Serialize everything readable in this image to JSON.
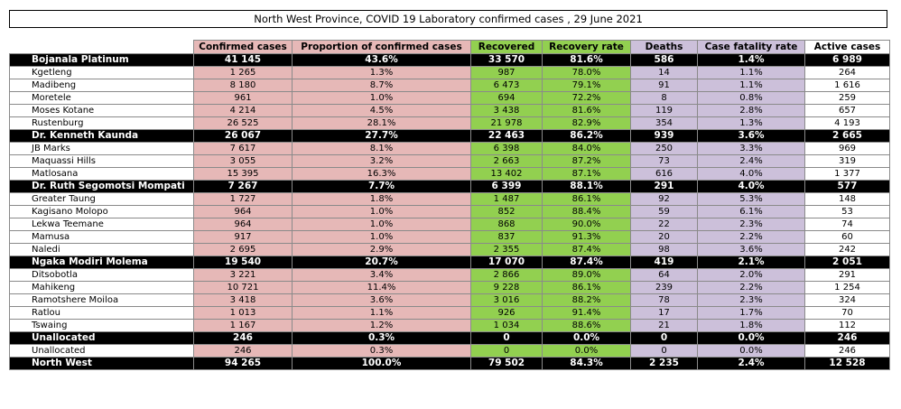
{
  "title": "North West Province, COVID 19 Laboratory confirmed cases , 29 June 2021",
  "columns": [
    "Confirmed cases",
    "Proportion of confirmed cases",
    "Recovered",
    "Recovery rate",
    "Deaths",
    "Case fatality rate",
    "Active cases"
  ],
  "colors": {
    "confirmed": "#e6b8b7",
    "recovered": "#92d050",
    "deaths": "#ccc0da",
    "district_bg": "#000000"
  },
  "rows": [
    {
      "type": "district",
      "name": "Bojanala Platinum",
      "values": [
        "41 145",
        "43.6%",
        "33 570",
        "81.6%",
        "586",
        "1.4%",
        "6 989"
      ]
    },
    {
      "type": "sub",
      "name": "Kgetleng",
      "values": [
        "1 265",
        "1.3%",
        "987",
        "78.0%",
        "14",
        "1.1%",
        "264"
      ]
    },
    {
      "type": "sub",
      "name": "Madibeng",
      "values": [
        "8 180",
        "8.7%",
        "6 473",
        "79.1%",
        "91",
        "1.1%",
        "1 616"
      ]
    },
    {
      "type": "sub",
      "name": "Moretele",
      "values": [
        "961",
        "1.0%",
        "694",
        "72.2%",
        "8",
        "0.8%",
        "259"
      ]
    },
    {
      "type": "sub",
      "name": "Moses Kotane",
      "values": [
        "4 214",
        "4.5%",
        "3 438",
        "81.6%",
        "119",
        "2.8%",
        "657"
      ]
    },
    {
      "type": "sub",
      "name": "Rustenburg",
      "values": [
        "26 525",
        "28.1%",
        "21 978",
        "82.9%",
        "354",
        "1.3%",
        "4 193"
      ]
    },
    {
      "type": "district",
      "name": "Dr. Kenneth Kaunda",
      "values": [
        "26 067",
        "27.7%",
        "22 463",
        "86.2%",
        "939",
        "3.6%",
        "2 665"
      ]
    },
    {
      "type": "sub",
      "name": "JB Marks",
      "values": [
        "7 617",
        "8.1%",
        "6 398",
        "84.0%",
        "250",
        "3.3%",
        "969"
      ]
    },
    {
      "type": "sub",
      "name": "Maquassi Hills",
      "values": [
        "3 055",
        "3.2%",
        "2 663",
        "87.2%",
        "73",
        "2.4%",
        "319"
      ]
    },
    {
      "type": "sub",
      "name": "Matlosana",
      "values": [
        "15 395",
        "16.3%",
        "13 402",
        "87.1%",
        "616",
        "4.0%",
        "1 377"
      ]
    },
    {
      "type": "district",
      "name": "Dr. Ruth Segomotsi Mompati",
      "values": [
        "7 267",
        "7.7%",
        "6 399",
        "88.1%",
        "291",
        "4.0%",
        "577"
      ]
    },
    {
      "type": "sub",
      "name": "Greater Taung",
      "values": [
        "1 727",
        "1.8%",
        "1 487",
        "86.1%",
        "92",
        "5.3%",
        "148"
      ]
    },
    {
      "type": "sub",
      "name": "Kagisano Molopo",
      "values": [
        "964",
        "1.0%",
        "852",
        "88.4%",
        "59",
        "6.1%",
        "53"
      ]
    },
    {
      "type": "sub",
      "name": "Lekwa Teemane",
      "values": [
        "964",
        "1.0%",
        "868",
        "90.0%",
        "22",
        "2.3%",
        "74"
      ]
    },
    {
      "type": "sub",
      "name": "Mamusa",
      "values": [
        "917",
        "1.0%",
        "837",
        "91.3%",
        "20",
        "2.2%",
        "60"
      ]
    },
    {
      "type": "sub",
      "name": "Naledi",
      "values": [
        "2 695",
        "2.9%",
        "2 355",
        "87.4%",
        "98",
        "3.6%",
        "242"
      ]
    },
    {
      "type": "district",
      "name": "Ngaka Modiri Molema",
      "values": [
        "19 540",
        "20.7%",
        "17 070",
        "87.4%",
        "419",
        "2.1%",
        "2 051"
      ]
    },
    {
      "type": "sub",
      "name": "Ditsobotla",
      "values": [
        "3 221",
        "3.4%",
        "2 866",
        "89.0%",
        "64",
        "2.0%",
        "291"
      ]
    },
    {
      "type": "sub",
      "name": "Mahikeng",
      "values": [
        "10 721",
        "11.4%",
        "9 228",
        "86.1%",
        "239",
        "2.2%",
        "1 254"
      ]
    },
    {
      "type": "sub",
      "name": "Ramotshere Moiloa",
      "values": [
        "3 418",
        "3.6%",
        "3 016",
        "88.2%",
        "78",
        "2.3%",
        "324"
      ]
    },
    {
      "type": "sub",
      "name": "Ratlou",
      "values": [
        "1 013",
        "1.1%",
        "926",
        "91.4%",
        "17",
        "1.7%",
        "70"
      ]
    },
    {
      "type": "sub",
      "name": "Tswaing",
      "values": [
        "1 167",
        "1.2%",
        "1 034",
        "88.6%",
        "21",
        "1.8%",
        "112"
      ]
    },
    {
      "type": "district",
      "name": "Unallocated",
      "values": [
        "246",
        "0.3%",
        "0",
        "0.0%",
        "0",
        "0.0%",
        "246"
      ]
    },
    {
      "type": "sub",
      "name": "Unallocated",
      "values": [
        "246",
        "0.3%",
        "0",
        "0.0%",
        "0",
        "0.0%",
        "246"
      ]
    },
    {
      "type": "total",
      "name": "North West",
      "values": [
        "94 265",
        "100.0%",
        "79 502",
        "84.3%",
        "2 235",
        "2.4%",
        "12 528"
      ]
    }
  ]
}
